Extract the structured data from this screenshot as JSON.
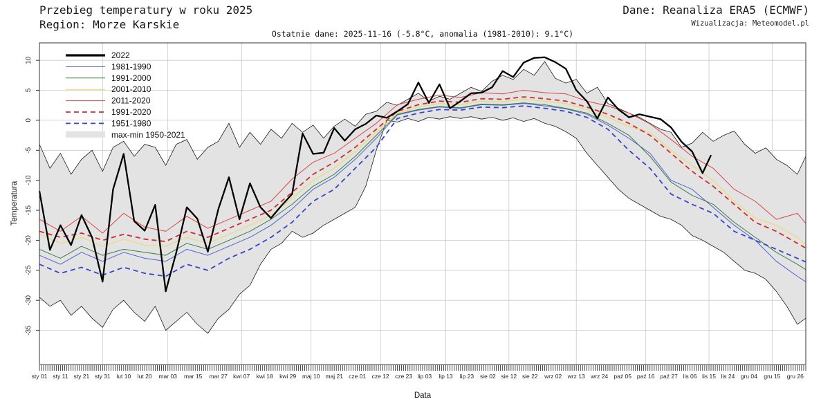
{
  "header": {
    "title": "Przebieg temperatury w roku 2025",
    "region": "Region: Morze Karskie",
    "source": "Dane: Reanaliza ERA5 (ECMWF)",
    "visualization": "Wizualizacja: Meteomodel.pl"
  },
  "subtitle": "Ostatnie dane: 2025-11-16 (-5.8°C, anomalia (1981-2010): 9.1°C)",
  "chart_data": {
    "type": "line",
    "title": "Przebieg temperatury w roku 2025 — Region: Morze Karskie",
    "xlabel": "Data",
    "ylabel": "Temperatura",
    "xlim": [
      1,
      365
    ],
    "ylim": [
      -40.7,
      12.9
    ],
    "grid": true,
    "legend_position": "top-left",
    "yticks": [
      10,
      5,
      0,
      -5,
      -10,
      -15,
      -20,
      -25,
      -30,
      -35
    ],
    "xticks": [
      {
        "label": "sty 01",
        "doy": 1
      },
      {
        "label": "sty 11",
        "doy": 11
      },
      {
        "label": "sty 21",
        "doy": 21
      },
      {
        "label": "sty 31",
        "doy": 31
      },
      {
        "label": "lut 10",
        "doy": 41
      },
      {
        "label": "lut 20",
        "doy": 51
      },
      {
        "label": "mar 03",
        "doy": 62
      },
      {
        "label": "mar 15",
        "doy": 74
      },
      {
        "label": "mar 27",
        "doy": 86
      },
      {
        "label": "kwi 07",
        "doy": 97
      },
      {
        "label": "kwi 18",
        "doy": 108
      },
      {
        "label": "kwi 29",
        "doy": 119
      },
      {
        "label": "maj 10",
        "doy": 130
      },
      {
        "label": "maj 21",
        "doy": 141
      },
      {
        "label": "cze 01",
        "doy": 152
      },
      {
        "label": "cze 12",
        "doy": 163
      },
      {
        "label": "cze 23",
        "doy": 174
      },
      {
        "label": "lip 03",
        "doy": 184
      },
      {
        "label": "lip 13",
        "doy": 194
      },
      {
        "label": "lip 23",
        "doy": 204
      },
      {
        "label": "sie 02",
        "doy": 214
      },
      {
        "label": "sie 12",
        "doy": 224
      },
      {
        "label": "sie 22",
        "doy": 234
      },
      {
        "label": "wrz 02",
        "doy": 245
      },
      {
        "label": "wrz 13",
        "doy": 256
      },
      {
        "label": "wrz 24",
        "doy": 267
      },
      {
        "label": "paź 05",
        "doy": 278
      },
      {
        "label": "paź 16",
        "doy": 289
      },
      {
        "label": "paź 27",
        "doy": 300
      },
      {
        "label": "lis 06",
        "doy": 310
      },
      {
        "label": "lis 15",
        "doy": 319
      },
      {
        "label": "lis 24",
        "doy": 328
      },
      {
        "label": "gru 04",
        "doy": 338
      },
      {
        "label": "gru 15",
        "doy": 349
      },
      {
        "label": "gru 26",
        "doy": 360
      }
    ],
    "style": {
      "grid": "#c9c9c9",
      "frame": "#333333",
      "tick": "#333333"
    },
    "x5": [
      1,
      6,
      11,
      16,
      21,
      26,
      31,
      36,
      41,
      46,
      51,
      56,
      61,
      66,
      71,
      76,
      81,
      86,
      91,
      96,
      101,
      106,
      111,
      116,
      121,
      126,
      131,
      136,
      141,
      146,
      151,
      156,
      161,
      166,
      171,
      176,
      181,
      186,
      191,
      196,
      201,
      206,
      211,
      216,
      221,
      226,
      231,
      236,
      241,
      246,
      251,
      256,
      261,
      266,
      271,
      276,
      281,
      286,
      291,
      296,
      301,
      306,
      311,
      316,
      321,
      326,
      331,
      336,
      341,
      346,
      351,
      356,
      361,
      365
    ],
    "x10": [
      1,
      11,
      21,
      31,
      41,
      51,
      61,
      71,
      81,
      91,
      101,
      111,
      121,
      131,
      141,
      151,
      161,
      171,
      181,
      191,
      201,
      211,
      221,
      231,
      241,
      251,
      261,
      271,
      281,
      291,
      301,
      311,
      321,
      331,
      341,
      351,
      361,
      365
    ],
    "x2022": [
      1,
      6,
      11,
      16,
      21,
      26,
      31,
      36,
      41,
      46,
      51,
      56,
      61,
      66,
      71,
      76,
      81,
      86,
      91,
      96,
      101,
      106,
      111,
      116,
      121,
      126,
      131,
      136,
      141,
      146,
      151,
      156,
      161,
      166,
      171,
      176,
      181,
      186,
      191,
      196,
      201,
      206,
      211,
      216,
      221,
      226,
      231,
      236,
      241,
      246,
      251,
      256,
      261,
      266,
      271,
      276,
      281,
      286,
      291,
      296,
      301,
      306,
      311,
      316,
      320
    ],
    "band": {
      "label": "max-min 1950-2021",
      "x": "x5",
      "fill": "#e3e3e3",
      "edge": "#1a1a1a",
      "upper": [
        -4.0,
        -8.0,
        -5.5,
        -9.0,
        -6.5,
        -5.0,
        -8.5,
        -4.5,
        -3.5,
        -6.0,
        -4.0,
        -4.5,
        -7.5,
        -4.0,
        -3.2,
        -6.5,
        -4.5,
        -3.5,
        -0.5,
        -4.5,
        -2.0,
        -4.0,
        -1.5,
        -3.0,
        -0.5,
        -2.0,
        -0.8,
        -3.0,
        -1.0,
        0.2,
        -1.0,
        1.0,
        1.5,
        3.0,
        2.5,
        3.5,
        4.5,
        3.2,
        4.0,
        3.5,
        4.5,
        5.5,
        4.8,
        6.5,
        7.5,
        6.8,
        8.5,
        7.5,
        9.8,
        7.0,
        6.2,
        6.8,
        4.5,
        5.5,
        2.8,
        2.0,
        1.2,
        0.5,
        -0.5,
        -1.5,
        -2.0,
        -4.5,
        -3.8,
        -2.0,
        -3.5,
        -2.5,
        -1.8,
        -4.0,
        -5.5,
        -4.6,
        -6.5,
        -7.5,
        -9.0,
        -6.0
      ],
      "lower": [
        -29.5,
        -31.0,
        -30.0,
        -32.5,
        -31.0,
        -33.0,
        -34.5,
        -31.5,
        -30.0,
        -32.0,
        -33.5,
        -31.0,
        -35.0,
        -33.5,
        -32.0,
        -34.0,
        -35.5,
        -33.0,
        -31.5,
        -29.0,
        -27.5,
        -24.0,
        -21.5,
        -20.5,
        -18.5,
        -19.5,
        -18.8,
        -17.5,
        -16.5,
        -15.5,
        -14.5,
        -11.0,
        -5.0,
        0.0,
        -0.3,
        0.3,
        -0.2,
        0.5,
        0.2,
        0.6,
        0.3,
        0.6,
        0.2,
        0.5,
        0.0,
        0.4,
        -0.2,
        0.3,
        -0.5,
        -1.0,
        -1.9,
        -3.0,
        -5.5,
        -7.5,
        -9.5,
        -11.5,
        -13.0,
        -14.0,
        -15.0,
        -16.0,
        -16.5,
        -17.5,
        -19.2,
        -20.0,
        -21.0,
        -22.0,
        -23.5,
        -25.0,
        -25.5,
        -26.5,
        -28.5,
        -31.0,
        -34.0,
        -33.0
      ]
    },
    "series": [
      {
        "name": "1981-1990",
        "label": "1981-1990",
        "color": "#4f63cf",
        "width": 1,
        "dash": null,
        "z": 1,
        "x": "x10",
        "values": [
          -22.5,
          -24.0,
          -22.0,
          -23.5,
          -22.0,
          -23.0,
          -23.5,
          -21.5,
          -22.5,
          -21.0,
          -19.5,
          -17.5,
          -14.8,
          -11.5,
          -9.5,
          -6.5,
          -3.0,
          0.9,
          1.7,
          2.2,
          2.0,
          2.6,
          2.5,
          2.8,
          2.4,
          1.9,
          1.0,
          -0.8,
          -3.0,
          -5.5,
          -10.0,
          -11.5,
          -14.5,
          -17.5,
          -20.0,
          -23.5,
          -26.0,
          -26.9
        ]
      },
      {
        "name": "1991-2000",
        "label": "1991-2000",
        "color": "#3a7d44",
        "width": 1,
        "dash": null,
        "z": 2,
        "x": "x10",
        "values": [
          -21.5,
          -23.0,
          -21.0,
          -22.5,
          -21.5,
          -22.0,
          -22.5,
          -20.5,
          -21.5,
          -20.0,
          -18.5,
          -16.5,
          -14.0,
          -11.0,
          -9.0,
          -6.0,
          -2.5,
          1.0,
          1.8,
          2.3,
          2.1,
          2.7,
          2.6,
          2.9,
          2.6,
          2.0,
          1.2,
          -0.5,
          -2.5,
          -6.0,
          -10.3,
          -12.5,
          -14.0,
          -17.0,
          -19.5,
          -22.0,
          -24.0,
          -24.9
        ]
      },
      {
        "name": "2001-2010",
        "label": "2001-2010",
        "color": "#ecd960",
        "width": 1,
        "dash": null,
        "z": 3,
        "x": "x10",
        "values": [
          -19.0,
          -20.5,
          -19.5,
          -21.0,
          -19.8,
          -20.8,
          -21.0,
          -19.5,
          -20.5,
          -19.0,
          -17.5,
          -15.8,
          -13.0,
          -10.0,
          -8.0,
          -5.2,
          -2.0,
          1.2,
          2.2,
          2.8,
          2.6,
          3.2,
          3.1,
          3.5,
          3.2,
          2.8,
          1.8,
          0.5,
          -1.0,
          -2.0,
          -5.0,
          -7.5,
          -10.0,
          -13.5,
          -16.3,
          -17.5,
          -19.5,
          -20.7
        ]
      },
      {
        "name": "2011-2020",
        "label": "2011-2020",
        "color": "#dd4444",
        "width": 1,
        "dash": null,
        "z": 4,
        "x": "x10",
        "values": [
          -16.5,
          -18.5,
          -16.0,
          -18.8,
          -15.5,
          -17.8,
          -18.5,
          -16.0,
          -18.0,
          -16.5,
          -15.0,
          -13.5,
          -9.8,
          -7.0,
          -5.5,
          -3.0,
          -0.5,
          2.6,
          3.5,
          4.2,
          3.8,
          4.6,
          4.4,
          5.0,
          4.6,
          4.4,
          3.2,
          2.4,
          1.2,
          -0.6,
          -3.2,
          -6.0,
          -8.0,
          -11.5,
          -13.5,
          -16.5,
          -15.5,
          -17.2
        ]
      },
      {
        "name": "1951-1980",
        "label": "1951-1980",
        "color": "#3344cc",
        "width": 1.8,
        "dash": "7,5",
        "z": 5,
        "x": "x10",
        "values": [
          -24.0,
          -25.5,
          -24.5,
          -25.8,
          -24.5,
          -25.5,
          -26.0,
          -24.0,
          -25.0,
          -23.0,
          -21.5,
          -19.5,
          -17.0,
          -13.5,
          -11.5,
          -8.0,
          -4.5,
          0.3,
          1.2,
          1.8,
          1.7,
          2.2,
          2.1,
          2.4,
          2.0,
          1.5,
          0.5,
          -1.5,
          -5.0,
          -8.0,
          -12.3,
          -14.0,
          -15.5,
          -18.5,
          -20.0,
          -21.5,
          -23.0,
          -23.6
        ]
      },
      {
        "name": "1991-2020",
        "label": "1991-2020",
        "color": "#d42a2a",
        "width": 1.8,
        "dash": "7,5",
        "z": 6,
        "x": "x10",
        "values": [
          -18.5,
          -19.5,
          -18.8,
          -20.0,
          -19.0,
          -19.8,
          -20.2,
          -18.5,
          -19.5,
          -18.0,
          -16.5,
          -15.0,
          -12.0,
          -9.0,
          -7.0,
          -4.5,
          -1.5,
          1.5,
          2.6,
          3.2,
          3.0,
          3.6,
          3.5,
          3.9,
          3.6,
          3.2,
          2.2,
          1.0,
          -0.5,
          -2.5,
          -5.5,
          -8.5,
          -11.0,
          -14.0,
          -17.0,
          -18.5,
          -20.5,
          -21.3
        ]
      },
      {
        "name": "2022",
        "label": "2022",
        "color": "#000000",
        "width": 2.3,
        "dash": null,
        "z": 7,
        "x": "x2022",
        "values": [
          -11.8,
          -21.6,
          -17.5,
          -20.8,
          -15.8,
          -19.5,
          -26.9,
          -11.5,
          -5.6,
          -16.8,
          -18.4,
          -14.1,
          -28.5,
          -22.0,
          -14.5,
          -16.4,
          -21.9,
          -14.8,
          -9.5,
          -16.5,
          -10.5,
          -14.5,
          -16.3,
          -14.2,
          -12.3,
          -2.2,
          -5.6,
          -5.4,
          -1.3,
          -3.4,
          -1.5,
          -0.6,
          0.8,
          0.4,
          1.5,
          2.7,
          6.3,
          2.9,
          6.0,
          2.0,
          3.2,
          4.5,
          4.6,
          5.5,
          8.2,
          7.2,
          9.6,
          10.4,
          10.5,
          9.7,
          8.6,
          5.0,
          3.2,
          0.3,
          3.8,
          1.8,
          0.5,
          1.0,
          0.6,
          0.2,
          -1.2,
          -3.6,
          -5.2,
          -8.8,
          -5.8
        ]
      }
    ],
    "legend": [
      {
        "type": "line",
        "label": "2022",
        "color": "#000000",
        "width": 3.2,
        "dash": null
      },
      {
        "type": "line",
        "label": "1981-1990",
        "color": "#4f63cf",
        "width": 1,
        "dash": null
      },
      {
        "type": "line",
        "label": "1991-2000",
        "color": "#3a7d44",
        "width": 1,
        "dash": null
      },
      {
        "type": "line",
        "label": "2001-2010",
        "color": "#ecd960",
        "width": 1,
        "dash": null
      },
      {
        "type": "line",
        "label": "2011-2020",
        "color": "#dd4444",
        "width": 1,
        "dash": null
      },
      {
        "type": "line",
        "label": "1991-2020",
        "color": "#d42a2a",
        "width": 1.8,
        "dash": "7,5"
      },
      {
        "type": "line",
        "label": "1951-1980",
        "color": "#3344cc",
        "width": 1.8,
        "dash": "7,5"
      },
      {
        "type": "band",
        "label": "max-min 1950-2021"
      }
    ]
  }
}
